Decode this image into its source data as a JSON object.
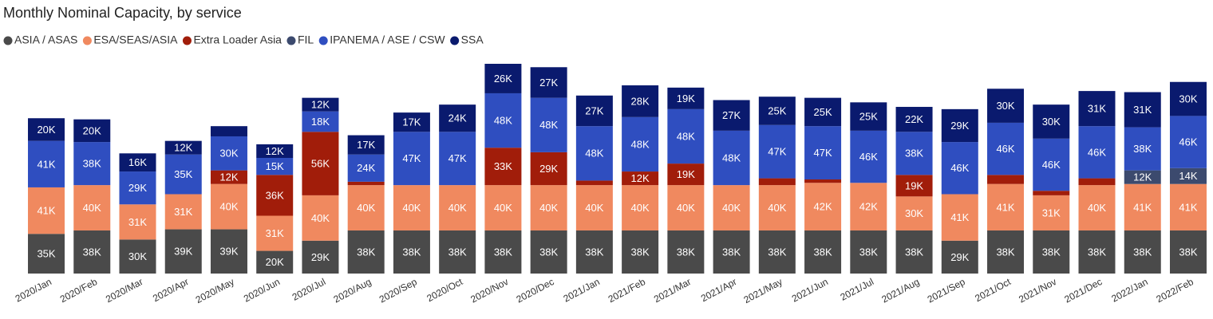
{
  "chart_data": {
    "type": "stacked_bar",
    "title": "Monthly Nominal Capacity, by service",
    "categories": [
      "2020/Jan",
      "2020/Feb",
      "2020/Mar",
      "2020/Apr",
      "2020/May",
      "2020/Jun",
      "2020/Jul",
      "2020/Aug",
      "2020/Sep",
      "2020/Oct",
      "2020/Nov",
      "2020/Dec",
      "2021/Jan",
      "2021/Feb",
      "2021/Mar",
      "2021/Apr",
      "2021/May",
      "2021/Jun",
      "2021/Jul",
      "2021/Aug",
      "2021/Sep",
      "2021/Oct",
      "2021/Nov",
      "2021/Dec",
      "2022/Jan",
      "2022/Feb"
    ],
    "ylim": [
      0,
      185
    ],
    "series": [
      {
        "name": "ASIA / ASAS",
        "color": "#4a4a4a",
        "values": [
          35,
          38,
          30,
          39,
          39,
          20,
          29,
          38,
          38,
          38,
          38,
          38,
          38,
          38,
          38,
          38,
          38,
          38,
          38,
          38,
          29,
          38,
          38,
          38,
          38,
          38
        ],
        "value_labels": [
          "35K",
          "38K",
          "30K",
          "39K",
          "39K",
          "20K",
          "29K",
          "38K",
          "38K",
          "38K",
          "38K",
          "38K",
          "38K",
          "38K",
          "38K",
          "38K",
          "38K",
          "38K",
          "38K",
          "38K",
          "29K",
          "38K",
          "38K",
          "38K",
          "38K",
          "38K"
        ]
      },
      {
        "name": "ESA/SEAS/ASIA",
        "color": "#f0895f",
        "values": [
          41,
          40,
          31,
          31,
          40,
          31,
          40,
          40,
          40,
          40,
          40,
          40,
          40,
          40,
          40,
          40,
          40,
          42,
          42,
          30,
          41,
          41,
          31,
          40,
          41,
          41
        ],
        "value_labels": [
          "41K",
          "40K",
          "31K",
          "31K",
          "40K",
          "31K",
          "40K",
          "40K",
          "40K",
          "40K",
          "40K",
          "40K",
          "40K",
          "40K",
          "40K",
          "40K",
          "40K",
          "42K",
          "42K",
          "30K",
          "41K",
          "41K",
          "31K",
          "40K",
          "41K",
          "41K"
        ]
      },
      {
        "name": "Extra Loader Asia",
        "color": "#a11d0a",
        "values": [
          null,
          null,
          null,
          null,
          12,
          36,
          56,
          3,
          null,
          null,
          33,
          29,
          4,
          12,
          19,
          null,
          6,
          3,
          null,
          19,
          null,
          8,
          4,
          6,
          null,
          null
        ],
        "value_labels": [
          null,
          null,
          null,
          null,
          "12K",
          "36K",
          "56K",
          null,
          null,
          null,
          "33K",
          "29K",
          null,
          "12K",
          "19K",
          null,
          null,
          null,
          null,
          "19K",
          null,
          null,
          null,
          null,
          null,
          null
        ]
      },
      {
        "name": "FIL",
        "color": "#3c4a6e",
        "values": [
          null,
          null,
          null,
          null,
          null,
          null,
          null,
          null,
          null,
          null,
          null,
          null,
          null,
          null,
          null,
          null,
          null,
          null,
          null,
          null,
          null,
          null,
          null,
          null,
          12,
          14
        ],
        "value_labels": [
          null,
          null,
          null,
          null,
          null,
          null,
          null,
          null,
          null,
          null,
          null,
          null,
          null,
          null,
          null,
          null,
          null,
          null,
          null,
          null,
          null,
          null,
          null,
          null,
          "12K",
          "14K"
        ]
      },
      {
        "name": "IPANEMA / ASE / CSW",
        "color": "#2f4ec0",
        "values": [
          41,
          38,
          29,
          35,
          30,
          15,
          18,
          24,
          47,
          47,
          48,
          48,
          48,
          48,
          48,
          48,
          47,
          47,
          46,
          38,
          46,
          46,
          46,
          46,
          38,
          46
        ],
        "value_labels": [
          "41K",
          "38K",
          "29K",
          "35K",
          "30K",
          "15K",
          "18K",
          "24K",
          "47K",
          "47K",
          "48K",
          "48K",
          "48K",
          "48K",
          "48K",
          "48K",
          "47K",
          "47K",
          "46K",
          "38K",
          "46K",
          "46K",
          "46K",
          "46K",
          "38K",
          "46K"
        ]
      },
      {
        "name": "SSA",
        "color": "#0a1a6e",
        "values": [
          20,
          20,
          16,
          12,
          9,
          12,
          12,
          17,
          17,
          24,
          26,
          27,
          27,
          28,
          19,
          27,
          25,
          25,
          25,
          22,
          29,
          30,
          30,
          31,
          31,
          30
        ],
        "value_labels": [
          "20K",
          "20K",
          "16K",
          "12K",
          null,
          "12K",
          "12K",
          "17K",
          "17K",
          "24K",
          "26K",
          "27K",
          "27K",
          "28K",
          "19K",
          "27K",
          "25K",
          "25K",
          "25K",
          "22K",
          "29K",
          "30K",
          "30K",
          "31K",
          "31K",
          "30K"
        ]
      }
    ]
  }
}
